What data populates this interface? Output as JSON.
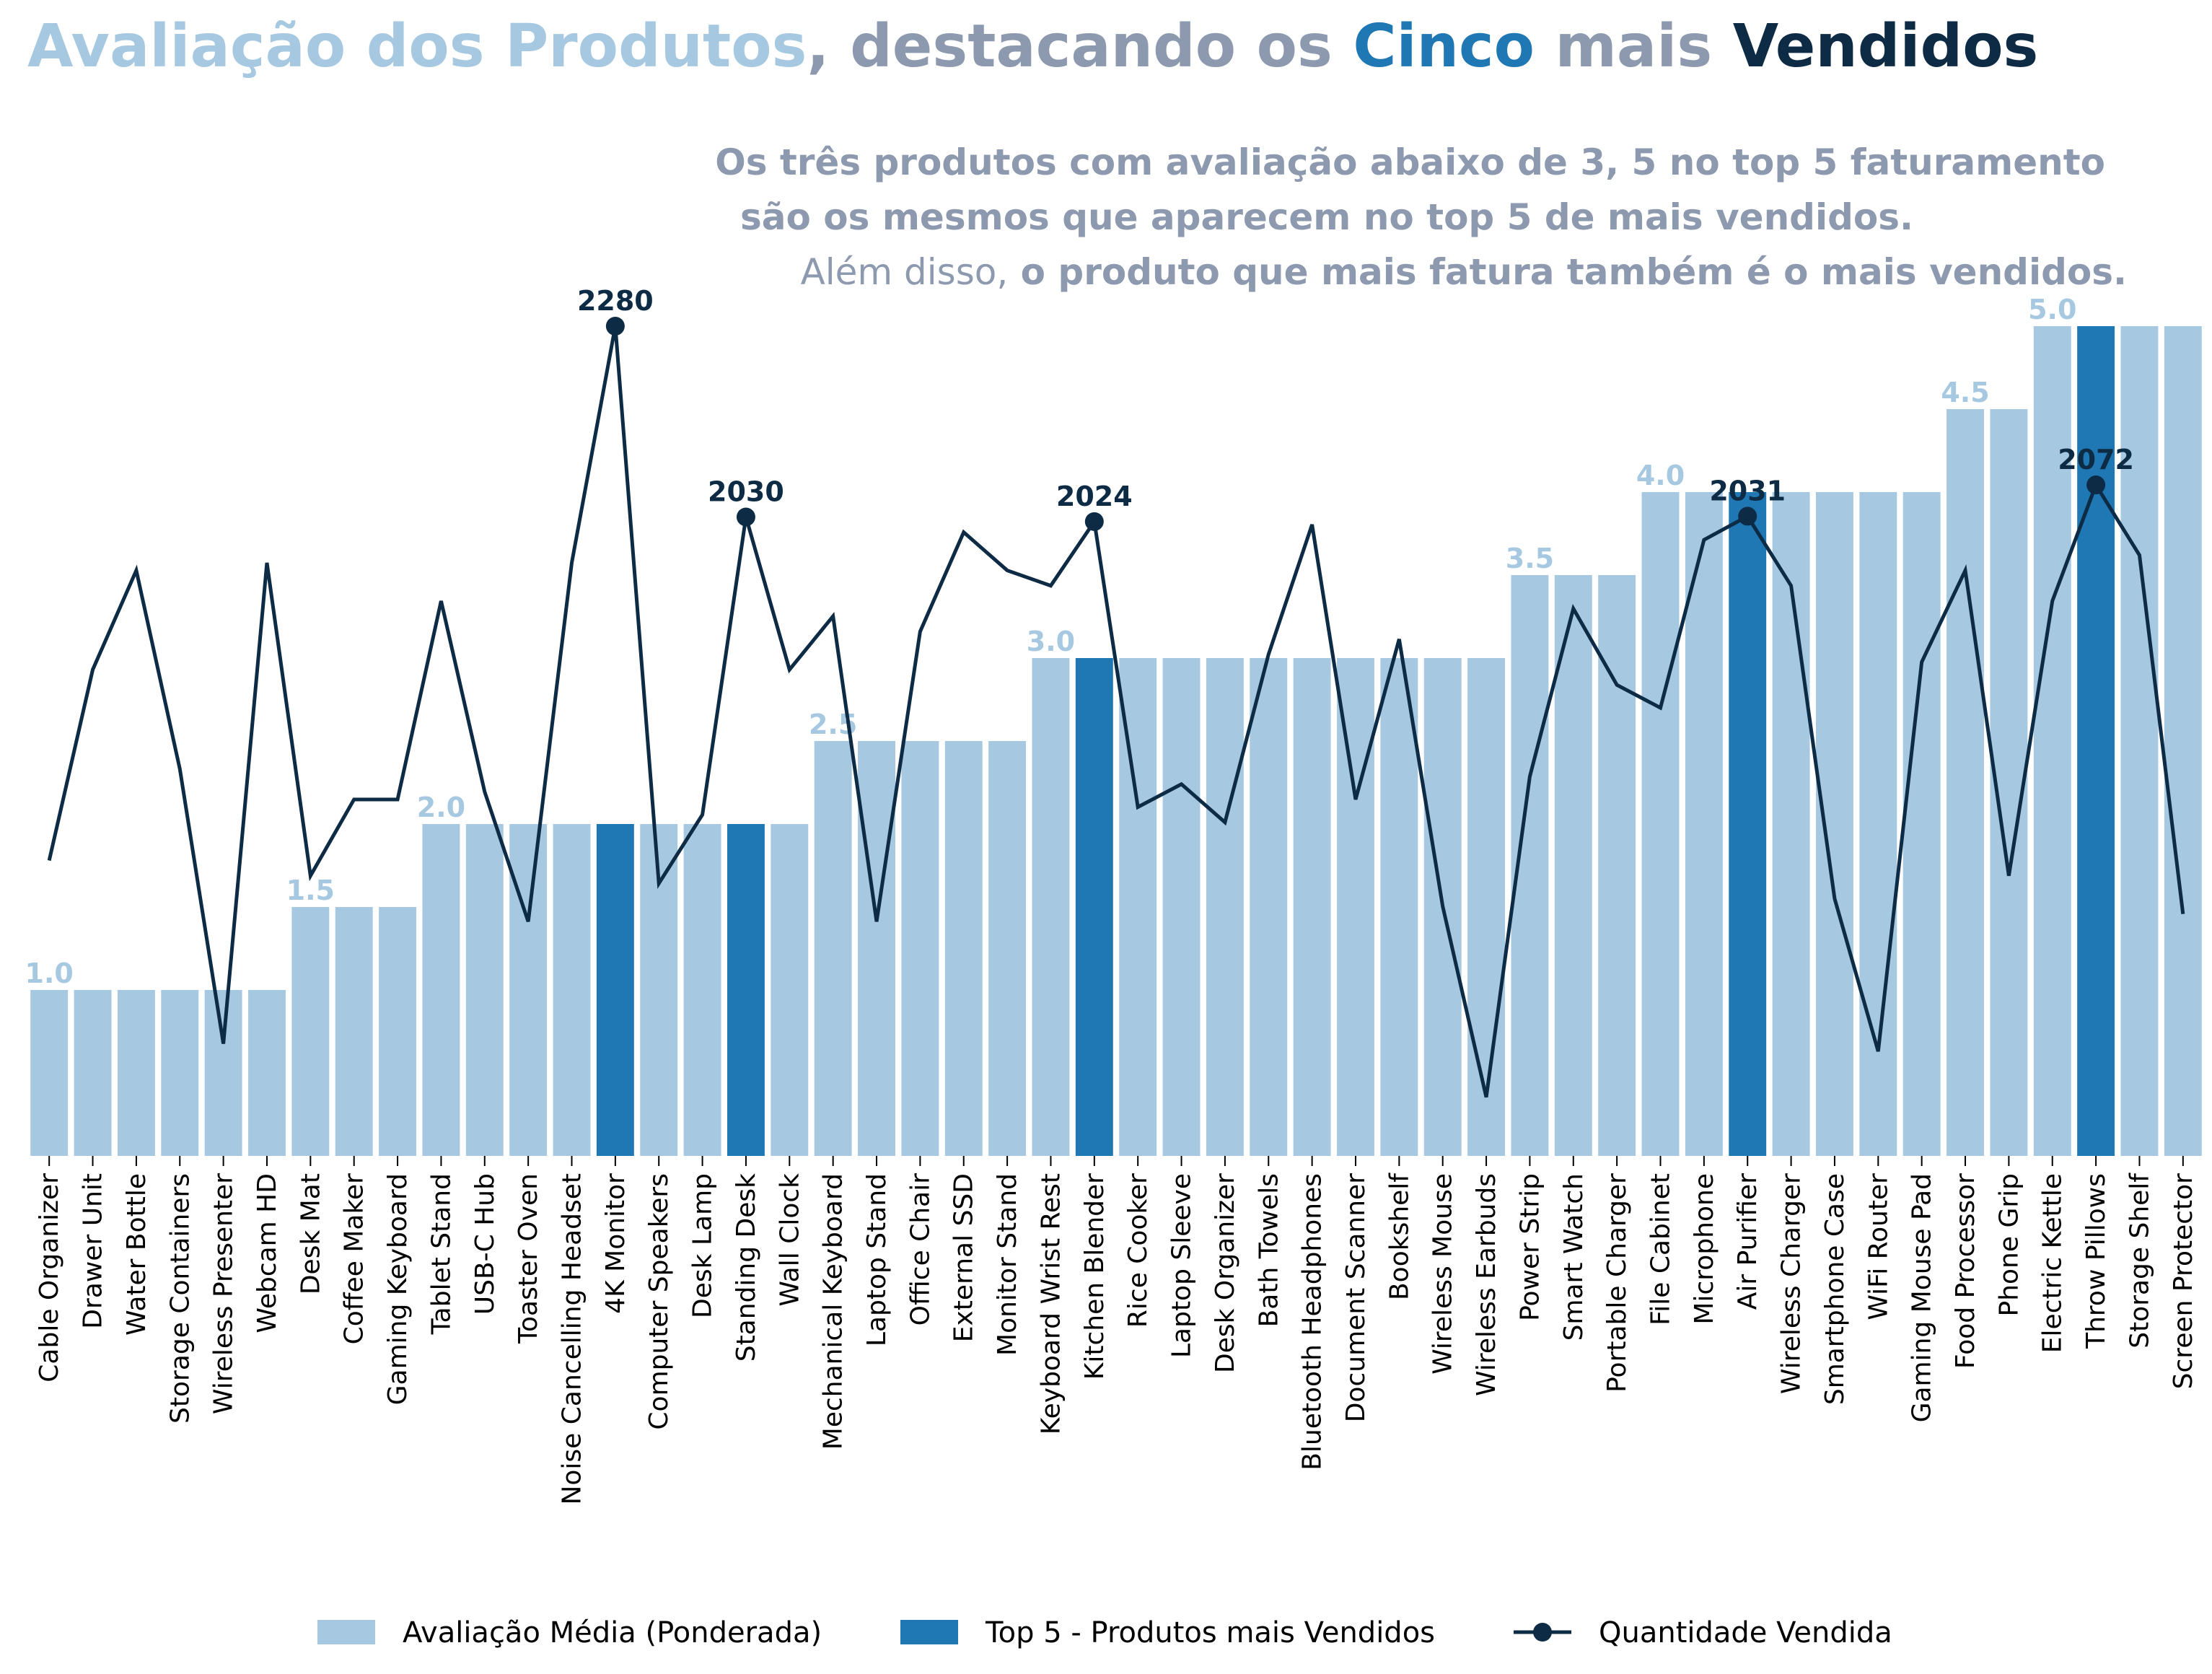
{
  "chart_data": {
    "type": "bar",
    "title": {
      "segments": [
        {
          "text": "Avaliação dos Produtos",
          "color": "#a6c8e1"
        },
        {
          "text": ", destacando os ",
          "color": "#8d99ae"
        },
        {
          "text": "Cinco",
          "color": "#1f77b4"
        },
        {
          "text": " mais ",
          "color": "#8d99ae"
        },
        {
          "text": "Vendidos",
          "color": "#0d2b45"
        }
      ]
    },
    "subtitle": {
      "line1": "Os três produtos com avaliação abaixo de 3, 5 no top 5 faturamento",
      "line2": "são os mesmos que aparecem no top 5 de mais vendidos.",
      "line3_normal": "Além disso,",
      "line3_bold": " o produto que mais fatura também é o mais vendidos."
    },
    "categories": [
      "Cable Organizer",
      "Drawer Unit",
      "Water Bottle",
      "Storage Containers",
      "Wireless Presenter",
      "Webcam HD",
      "Desk Mat",
      "Coffee Maker",
      "Gaming Keyboard",
      "Tablet Stand",
      "USB-C Hub",
      "Toaster Oven",
      "Noise Cancelling Headset",
      "4K Monitor",
      "Computer Speakers",
      "Desk Lamp",
      "Standing Desk",
      "Wall Clock",
      "Mechanical Keyboard",
      "Laptop Stand",
      "Office Chair",
      "External SSD",
      "Monitor Stand",
      "Keyboard Wrist Rest",
      "Kitchen Blender",
      "Rice Cooker",
      "Laptop Sleeve",
      "Desk Organizer",
      "Bath Towels",
      "Bluetooth Headphones",
      "Document Scanner",
      "Bookshelf",
      "Wireless Mouse",
      "Wireless Earbuds",
      "Power Strip",
      "Smart Watch",
      "Portable Charger",
      "File Cabinet",
      "Microphone",
      "Air Purifier",
      "Wireless Charger",
      "Smartphone Case",
      "WiFi Router",
      "Gaming Mouse Pad",
      "Food Processor",
      "Phone Grip",
      "Electric Kettle",
      "Throw Pillows",
      "Storage Shelf",
      "Screen Protector"
    ],
    "series": [
      {
        "name": "Avaliação Média (Ponderada)",
        "kind": "bar",
        "color": "#a6c8e1",
        "values": [
          1.0,
          1.0,
          1.0,
          1.0,
          1.0,
          1.0,
          1.5,
          1.5,
          1.5,
          2.0,
          2.0,
          2.0,
          2.0,
          2.0,
          2.0,
          2.0,
          2.0,
          2.0,
          2.5,
          2.5,
          2.5,
          2.5,
          2.5,
          3.0,
          3.0,
          3.0,
          3.0,
          3.0,
          3.0,
          3.0,
          3.0,
          3.0,
          3.0,
          3.0,
          3.5,
          3.5,
          3.5,
          4.0,
          4.0,
          4.0,
          4.0,
          4.0,
          4.0,
          4.0,
          4.5,
          4.5,
          5.0,
          5.0,
          5.0,
          5.0
        ]
      },
      {
        "name": "Top 5 - Produtos mais Vendidos",
        "kind": "bar-highlight",
        "color": "#1f77b4",
        "categories": [
          "4K Monitor",
          "Standing Desk",
          "Kitchen Blender",
          "Air Purifier",
          "Throw Pillows"
        ]
      },
      {
        "name": "Quantidade Vendida",
        "kind": "line",
        "color": "#0d2b45",
        "values": [
          1580,
          1830,
          1960,
          1700,
          1340,
          1970,
          1560,
          1660,
          1660,
          1920,
          1670,
          1500,
          1970,
          2280,
          1550,
          1640,
          2030,
          1830,
          1900,
          1500,
          1880,
          2010,
          1960,
          1940,
          2024,
          1650,
          1680,
          1630,
          1850,
          2020,
          1660,
          1870,
          1520,
          1270,
          1690,
          1910,
          1810,
          1780,
          2000,
          2031,
          1940,
          1530,
          1330,
          1840,
          1960,
          1560,
          1920,
          2072,
          1980,
          1510
        ],
        "labeled_points": [
          {
            "category": "4K Monitor",
            "label": "2280"
          },
          {
            "category": "Standing Desk",
            "label": "2030"
          },
          {
            "category": "Kitchen Blender",
            "label": "2024"
          },
          {
            "category": "Air Purifier",
            "label": "2031"
          },
          {
            "category": "Throw Pillows",
            "label": "2072"
          }
        ]
      }
    ],
    "bar_level_labels": [
      {
        "category": "Cable Organizer",
        "label": "1.0"
      },
      {
        "category": "Desk Mat",
        "label": "1.5"
      },
      {
        "category": "Tablet Stand",
        "label": "2.0"
      },
      {
        "category": "Mechanical Keyboard",
        "label": "2.5"
      },
      {
        "category": "Keyboard Wrist Rest",
        "label": "3.0"
      },
      {
        "category": "Power Strip",
        "label": "3.5"
      },
      {
        "category": "File Cabinet",
        "label": "4.0"
      },
      {
        "category": "Food Processor",
        "label": "4.5"
      },
      {
        "category": "Electric Kettle",
        "label": "5.0"
      }
    ],
    "ylim_bar": [
      0,
      5
    ],
    "ylim_line": [
      1245,
      2280
    ],
    "grid": false,
    "legend_position": "bottom-center",
    "colors": {
      "bar": "#a6c8e1",
      "highlight": "#1f77b4",
      "line": "#0d2b45",
      "subtitle": "#8d99ae",
      "bar_label": "#a6c8e1"
    }
  }
}
